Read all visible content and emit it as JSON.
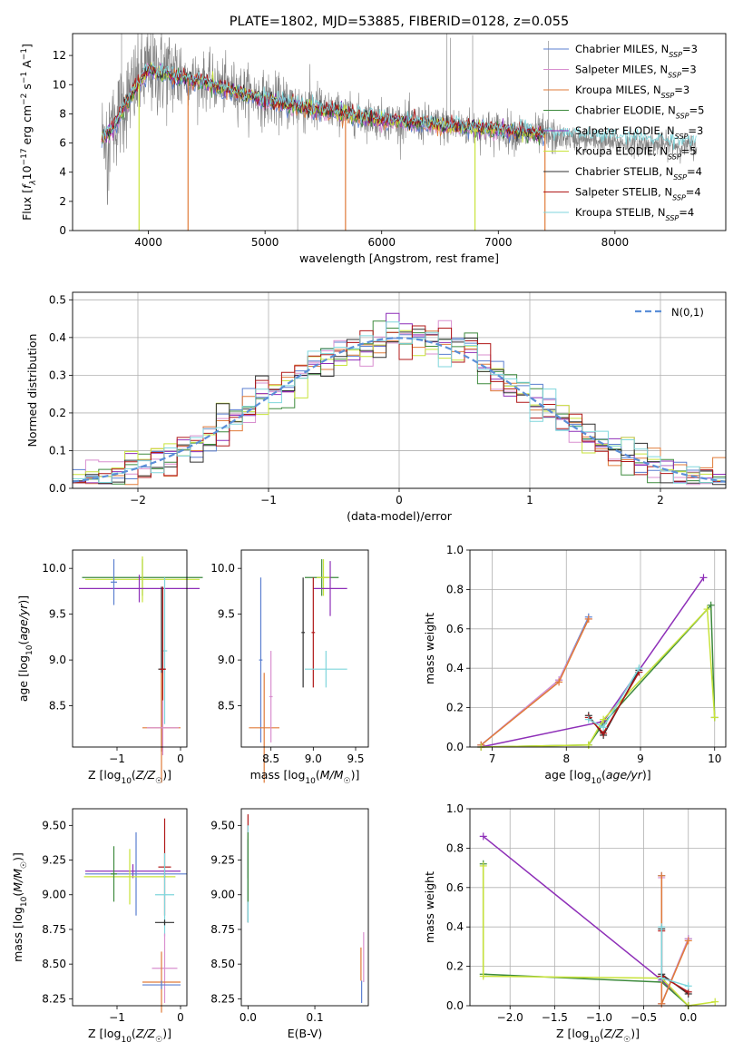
{
  "figure": {
    "title": "PLATE=1802, MJD=53885, FIBERID=0128, z=0.055"
  },
  "models": [
    {
      "name": "Chabrier MILES",
      "nssp": "3",
      "color": "#5b7fd0"
    },
    {
      "name": "Salpeter MILES",
      "nssp": "3",
      "color": "#d98fcf"
    },
    {
      "name": "Kroupa MILES",
      "nssp": "3",
      "color": "#e07b39"
    },
    {
      "name": "Chabrier ELODIE",
      "nssp": "5",
      "color": "#3d8a3d"
    },
    {
      "name": "Salpeter ELODIE",
      "nssp": "3",
      "color": "#8e2fb8"
    },
    {
      "name": "Kroupa ELODIE",
      "nssp": "5",
      "color": "#c8e33a"
    },
    {
      "name": "Chabrier STELIB",
      "nssp": "4",
      "color": "#303030"
    },
    {
      "name": "Salpeter STELIB",
      "nssp": "4",
      "color": "#b01818"
    },
    {
      "name": "Kroupa STELIB",
      "nssp": "4",
      "color": "#7fd6dc"
    }
  ],
  "chart_data": [
    {
      "id": "spectrum",
      "type": "line",
      "xlabel": "wavelength [Angstrom, rest frame]",
      "ylabel": "Flux [f_λ 10^-17 erg cm^-2 s^-1 A^-1]",
      "xlim": [
        3350,
        8950
      ],
      "ylim": [
        0,
        13.5
      ],
      "xticks": [
        4000,
        5000,
        6000,
        7000,
        8000
      ],
      "yticks": [
        0,
        2,
        4,
        6,
        8,
        10,
        12
      ],
      "grid": false,
      "legend": "top-right",
      "data_color": "#808080",
      "data_anchors": [
        [
          3600,
          6.5
        ],
        [
          3700,
          7.2
        ],
        [
          3850,
          9.5
        ],
        [
          4000,
          11.0
        ],
        [
          4200,
          10.8
        ],
        [
          4500,
          10.2
        ],
        [
          4800,
          9.6
        ],
        [
          5000,
          9.0
        ],
        [
          5500,
          8.3
        ],
        [
          6000,
          7.6
        ],
        [
          6500,
          7.2
        ],
        [
          7000,
          6.9
        ],
        [
          7400,
          6.5
        ],
        [
          8000,
          6.0
        ],
        [
          8700,
          5.8
        ]
      ],
      "model_anchors": [
        [
          3600,
          6.3
        ],
        [
          3700,
          7.0
        ],
        [
          3850,
          9.3
        ],
        [
          4000,
          11.0
        ],
        [
          4200,
          10.6
        ],
        [
          4500,
          10.1
        ],
        [
          4800,
          9.4
        ],
        [
          5000,
          8.9
        ],
        [
          5500,
          8.2
        ],
        [
          6000,
          7.6
        ],
        [
          6500,
          7.2
        ],
        [
          7000,
          6.9
        ],
        [
          7400,
          6.6
        ],
        [
          8000,
          6.3
        ],
        [
          8700,
          6.0
        ]
      ]
    },
    {
      "id": "residuals",
      "type": "step",
      "xlabel": "(data-model)/error",
      "ylabel": "Normed distribution",
      "xlim": [
        -2.5,
        2.5
      ],
      "ylim": [
        0,
        0.52
      ],
      "xticks": [
        -2,
        -1,
        0,
        1,
        2
      ],
      "yticks": [
        0.0,
        0.1,
        0.2,
        0.3,
        0.4,
        0.5
      ],
      "grid": true,
      "legend": "top-right",
      "gaussian_label": "N(0,1)",
      "gaussian_color": "#5b8fd8",
      "bin_width": 0.1
    },
    {
      "id": "age-vs-Z",
      "type": "errorbar",
      "xlabel": "Z [log10(Z/Z☉)]",
      "ylabel": "age [log10(age/yr)]",
      "xlim": [
        -1.7,
        0.1
      ],
      "ylim": [
        8.05,
        10.2
      ],
      "xticks": [
        -1,
        0
      ],
      "yticks": [
        8.5,
        9.0,
        9.5,
        10.0
      ],
      "grid": false,
      "points": [
        {
          "model": 3,
          "x": -0.6,
          "y": 9.9,
          "xerr": 0.95,
          "yerr": 0.2
        },
        {
          "model": 5,
          "x": -0.6,
          "y": 9.88,
          "xerr": 0.9,
          "yerr": 0.25
        },
        {
          "model": 4,
          "x": -0.65,
          "y": 9.78,
          "xerr": 0.95,
          "yerr": 0.15
        },
        {
          "model": 0,
          "x": -1.05,
          "y": 9.85,
          "xerr": 0.05,
          "yerr": 0.25
        },
        {
          "model": 8,
          "x": -0.25,
          "y": 9.1,
          "xerr": 0.04,
          "yerr": 0.8
        },
        {
          "model": 6,
          "x": -0.3,
          "y": 8.9,
          "xerr": 0.05,
          "yerr": 0.9
        },
        {
          "model": 7,
          "x": -0.28,
          "y": 8.9,
          "xerr": 0.05,
          "yerr": 0.9
        },
        {
          "model": 2,
          "x": -0.3,
          "y": 8.26,
          "xerr": 0.3,
          "yerr": 0.6
        },
        {
          "model": 1,
          "x": -0.28,
          "y": 8.26,
          "xerr": 0.25,
          "yerr": 0.3
        }
      ]
    },
    {
      "id": "age-vs-mass",
      "type": "errorbar",
      "xlabel": "mass [log10(M/M☉)]",
      "ylabel": "",
      "xlim": [
        8.15,
        9.65
      ],
      "ylim": [
        8.05,
        10.2
      ],
      "xticks": [
        8.5,
        9.0,
        9.5
      ],
      "yticks": [
        8.5,
        9.0,
        9.5,
        10.0
      ],
      "grid": false,
      "points": [
        {
          "model": 3,
          "x": 9.1,
          "y": 9.9,
          "xerr": 0.2,
          "yerr": 0.2
        },
        {
          "model": 5,
          "x": 9.12,
          "y": 9.9,
          "xerr": 0.08,
          "yerr": 0.2
        },
        {
          "model": 4,
          "x": 9.2,
          "y": 9.78,
          "xerr": 0.2,
          "yerr": 0.3
        },
        {
          "model": 6,
          "x": 8.88,
          "y": 9.3,
          "xerr": 0.02,
          "yerr": 0.6
        },
        {
          "model": 7,
          "x": 9.0,
          "y": 9.3,
          "xerr": 0.02,
          "yerr": 0.6
        },
        {
          "model": 8,
          "x": 9.15,
          "y": 8.9,
          "xerr": 0.25,
          "yerr": 0.2
        },
        {
          "model": 0,
          "x": 8.38,
          "y": 9.0,
          "xerr": 0.02,
          "yerr": 0.9
        },
        {
          "model": 2,
          "x": 8.42,
          "y": 8.26,
          "xerr": 0.18,
          "yerr": 0.6
        },
        {
          "model": 1,
          "x": 8.5,
          "y": 8.6,
          "xerr": 0.02,
          "yerr": 0.5
        }
      ]
    },
    {
      "id": "weight-vs-age",
      "type": "line",
      "xlabel": "age [log10(age/yr)]",
      "ylabel": "mass weight",
      "xlim": [
        6.7,
        10.15
      ],
      "ylim": [
        0,
        1.0
      ],
      "xticks": [
        7,
        8,
        9,
        10
      ],
      "yticks": [
        0.0,
        0.2,
        0.4,
        0.6,
        0.8,
        1.0
      ],
      "grid": true,
      "series": [
        {
          "model": 0,
          "x": [
            6.85,
            7.9,
            8.3
          ],
          "y": [
            0.01,
            0.34,
            0.66
          ]
        },
        {
          "model": 1,
          "x": [
            6.85,
            7.9,
            8.3
          ],
          "y": [
            0.01,
            0.34,
            0.65
          ]
        },
        {
          "model": 2,
          "x": [
            6.85,
            7.9,
            8.3
          ],
          "y": [
            0.01,
            0.33,
            0.65
          ]
        },
        {
          "model": 3,
          "x": [
            6.85,
            8.3,
            8.5,
            9.95,
            10.0
          ],
          "y": [
            0.0,
            0.01,
            0.12,
            0.72,
            0.15
          ]
        },
        {
          "model": 4,
          "x": [
            6.85,
            8.5,
            9.85
          ],
          "y": [
            0.0,
            0.13,
            0.86
          ]
        },
        {
          "model": 5,
          "x": [
            6.85,
            8.3,
            8.5,
            9.9,
            10.0
          ],
          "y": [
            0.0,
            0.01,
            0.14,
            0.7,
            0.15
          ]
        },
        {
          "model": 6,
          "x": [
            8.3,
            8.5,
            8.98
          ],
          "y": [
            0.16,
            0.06,
            0.39
          ]
        },
        {
          "model": 7,
          "x": [
            8.3,
            8.5,
            8.98
          ],
          "y": [
            0.15,
            0.07,
            0.38
          ]
        },
        {
          "model": 8,
          "x": [
            8.3,
            8.5,
            8.98
          ],
          "y": [
            0.14,
            0.1,
            0.4
          ]
        }
      ]
    },
    {
      "id": "mass-vs-Z",
      "type": "errorbar",
      "xlabel": "Z [log10(Z/Z☉)]",
      "ylabel": "mass [log10(M/M☉)]",
      "xlim": [
        -1.7,
        0.1
      ],
      "ylim": [
        8.2,
        9.62
      ],
      "xticks": [
        -1,
        0
      ],
      "yticks": [
        8.25,
        8.5,
        8.75,
        9.0,
        9.25,
        9.5
      ],
      "grid": false,
      "points": [
        {
          "model": 4,
          "x": -0.75,
          "y": 9.17,
          "xerr": 0.75,
          "yerr": 0.05
        },
        {
          "model": 0,
          "x": -0.7,
          "y": 9.15,
          "xerr": 0.8,
          "yerr": 0.3
        },
        {
          "model": 5,
          "x": -0.8,
          "y": 9.13,
          "xerr": 0.72,
          "yerr": 0.2
        },
        {
          "model": 3,
          "x": -1.05,
          "y": 9.15,
          "xerr": 0.05,
          "yerr": 0.2
        },
        {
          "model": 7,
          "x": -0.25,
          "y": 9.2,
          "xerr": 0.1,
          "yerr": 0.35
        },
        {
          "model": 8,
          "x": -0.25,
          "y": 9.0,
          "xerr": 0.15,
          "yerr": 0.3
        },
        {
          "model": 6,
          "x": -0.25,
          "y": 8.8,
          "xerr": 0.15,
          "yerr": 0.02
        },
        {
          "model": 1,
          "x": -0.25,
          "y": 8.47,
          "xerr": 0.2,
          "yerr": 0.25
        },
        {
          "model": 2,
          "x": -0.3,
          "y": 8.37,
          "xerr": 0.3,
          "yerr": 0.22
        },
        {
          "model": 0,
          "x": -0.3,
          "y": 8.35,
          "xerr": 0.3,
          "yerr": 0.03
        }
      ]
    },
    {
      "id": "mass-vs-EBV",
      "type": "errorbar",
      "xlabel": "E(B-V)",
      "ylabel": "",
      "xlim": [
        -0.01,
        0.18
      ],
      "ylim": [
        8.2,
        9.62
      ],
      "xticks": [
        0.0,
        0.1
      ],
      "yticks": [
        8.25,
        8.5,
        8.75,
        9.0,
        9.25,
        9.5
      ],
      "grid": false,
      "points": [
        {
          "model": 7,
          "x": 0.0,
          "y": 9.35,
          "xerr": 0,
          "yerr": 0.23
        },
        {
          "model": 6,
          "x": 0.0,
          "y": 9.1,
          "xerr": 0,
          "yerr": 0.3
        },
        {
          "model": 8,
          "x": 0.0,
          "y": 9.15,
          "xerr": 0,
          "yerr": 0.35
        },
        {
          "model": 3,
          "x": 0.0,
          "y": 9.2,
          "xerr": 0,
          "yerr": 0.25
        },
        {
          "model": 1,
          "x": 0.173,
          "y": 8.55,
          "xerr": 0,
          "yerr": 0.18
        },
        {
          "model": 2,
          "x": 0.169,
          "y": 8.5,
          "xerr": 0,
          "yerr": 0.12
        },
        {
          "model": 0,
          "x": 0.17,
          "y": 8.3,
          "xerr": 0,
          "yerr": 0.08
        }
      ]
    },
    {
      "id": "weight-vs-Z",
      "type": "line",
      "xlabel": "Z [log10(Z/Z☉)]",
      "ylabel": "mass weight",
      "xlim": [
        -2.45,
        0.42
      ],
      "ylim": [
        0,
        1.0
      ],
      "xticks": [
        -2.0,
        -1.5,
        -1.0,
        -0.5,
        0.0
      ],
      "yticks": [
        0.0,
        0.2,
        0.4,
        0.6,
        0.8,
        1.0
      ],
      "grid": true,
      "series": [
        {
          "model": 4,
          "x": [
            -2.3,
            -0.3,
            0.0
          ],
          "y": [
            0.86,
            0.13,
            0.0
          ]
        },
        {
          "model": 3,
          "x": [
            -2.3,
            -2.3,
            -0.3,
            0.0
          ],
          "y": [
            0.72,
            0.16,
            0.12,
            0.0
          ]
        },
        {
          "model": 5,
          "x": [
            -2.3,
            -2.3,
            -0.3,
            0.0,
            0.3
          ],
          "y": [
            0.71,
            0.15,
            0.14,
            0.0,
            0.02
          ]
        },
        {
          "model": 0,
          "x": [
            -0.3,
            -0.3,
            0.0
          ],
          "y": [
            0.66,
            0.01,
            0.34
          ]
        },
        {
          "model": 1,
          "x": [
            -0.3,
            -0.3,
            0.0
          ],
          "y": [
            0.65,
            0.01,
            0.34
          ]
        },
        {
          "model": 2,
          "x": [
            -0.3,
            -0.3,
            0.0
          ],
          "y": [
            0.66,
            0.01,
            0.33
          ]
        },
        {
          "model": 6,
          "x": [
            -0.3,
            -0.3,
            0.0
          ],
          "y": [
            0.39,
            0.16,
            0.06
          ]
        },
        {
          "model": 7,
          "x": [
            -0.3,
            -0.3,
            0.0
          ],
          "y": [
            0.38,
            0.15,
            0.07
          ]
        },
        {
          "model": 8,
          "x": [
            -0.3,
            -0.3,
            0.0
          ],
          "y": [
            0.4,
            0.14,
            0.1
          ]
        }
      ]
    }
  ]
}
